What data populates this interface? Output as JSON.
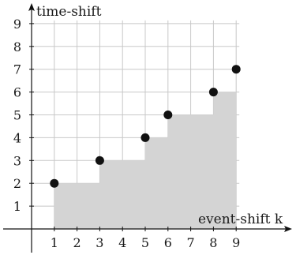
{
  "chart_data": {
    "type": "scatter",
    "title": "",
    "xlabel": "event-shift k",
    "ylabel": "time-shift",
    "xlim": [
      0,
      9
    ],
    "ylim": [
      0,
      9
    ],
    "grid": true,
    "x_ticks": [
      "1",
      "2",
      "3",
      "4",
      "5",
      "6",
      "7",
      "8",
      "9"
    ],
    "y_ticks": [
      "1",
      "2",
      "3",
      "4",
      "5",
      "6",
      "7",
      "8",
      "9"
    ],
    "series": [
      {
        "points": [
          {
            "x": 1,
            "y": 2
          },
          {
            "x": 3,
            "y": 3
          },
          {
            "x": 5,
            "y": 4
          },
          {
            "x": 6,
            "y": 5
          },
          {
            "x": 8,
            "y": 6
          },
          {
            "x": 9,
            "y": 7
          }
        ]
      }
    ],
    "step_area": {
      "points": [
        {
          "x": 1,
          "y": 2
        },
        {
          "x": 3,
          "y": 3
        },
        {
          "x": 5,
          "y": 4
        },
        {
          "x": 6,
          "y": 5
        },
        {
          "x": 8,
          "y": 6
        },
        {
          "x": 9,
          "y": 7
        }
      ],
      "x_end": 9
    },
    "colors": {
      "point": "#111111",
      "area": "#d4d4d4",
      "grid": "#c8c8c8",
      "axis": "#111111"
    }
  }
}
